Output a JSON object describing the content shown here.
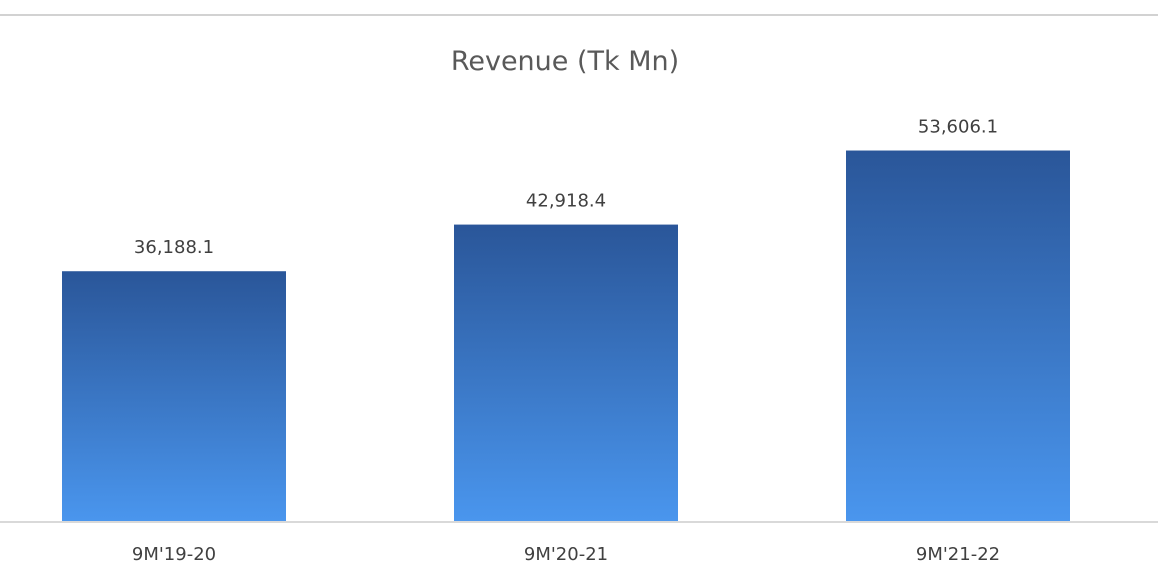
{
  "chart_data": {
    "type": "bar",
    "title": "Revenue (Tk Mn)",
    "categories": [
      "9M'19-20",
      "9M'20-21",
      "9M'21-22"
    ],
    "values": [
      36188.1,
      42918.4,
      53606.1
    ],
    "value_labels": [
      "36,188.1",
      "42,918.4",
      "53,606.1"
    ],
    "xlabel": "",
    "ylabel": "",
    "ylim": [
      0,
      57000
    ],
    "grid": false,
    "legend": "none",
    "colors": {
      "bar_top": "#2A5699",
      "bar_bottom": "#4A96EE",
      "title_text": "#595959",
      "label_text": "#404040",
      "axis_line": "#D9D9D9",
      "frame_line": "#A6A6A6"
    }
  }
}
